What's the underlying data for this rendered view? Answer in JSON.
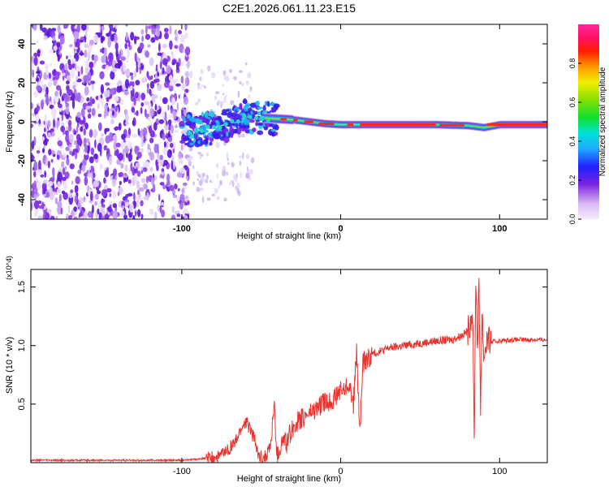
{
  "title": "C2E1.2026.061.11.23.E15",
  "colors": {
    "snr_line": "#e8342f",
    "frame": "#000000",
    "background": "#ffffff"
  },
  "chart_data": [
    {
      "type": "heatmap",
      "name": "spectrogram",
      "title": "C2E1.2026.061.11.23.E15",
      "xlabel": "Height of straight line (km)",
      "ylabel": "Frequency (Hz)",
      "xlim": [
        -195,
        130
      ],
      "ylim": [
        -50,
        50
      ],
      "xticks": [
        -100,
        0,
        100
      ],
      "xtick_labels": [
        "-100",
        "0",
        "100"
      ],
      "yticks": [
        -40,
        -20,
        0,
        20,
        40
      ],
      "ytick_labels": [
        "-40",
        "-20",
        "0",
        "20",
        "40"
      ],
      "colorbar": {
        "label": "Normalized spectral amplitude",
        "range": [
          0,
          1
        ],
        "ticks": [
          0.0,
          0.2,
          0.4,
          0.6,
          0.8
        ],
        "tick_labels": [
          "0.0",
          "0.2",
          "0.4",
          "0.6",
          "0.8"
        ],
        "colormap": "rainbow (white/lavender-violet-blue-cyan-green-yellow-orange-red-pink)"
      },
      "features": {
        "noise_region_x": [
          -195,
          -100
        ],
        "carrier_track": [
          {
            "x": -100,
            "f": -5
          },
          {
            "x": -85,
            "f": -4
          },
          {
            "x": -70,
            "f": -1
          },
          {
            "x": -60,
            "f": 3
          },
          {
            "x": -50,
            "f": 2
          },
          {
            "x": -40,
            "f": 1.5
          },
          {
            "x": -30,
            "f": 1
          },
          {
            "x": -20,
            "f": 0
          },
          {
            "x": -10,
            "f": -1
          },
          {
            "x": 0,
            "f": -1.5
          },
          {
            "x": 20,
            "f": -1.5
          },
          {
            "x": 60,
            "f": -1.5
          },
          {
            "x": 80,
            "f": -2
          },
          {
            "x": 90,
            "f": -3
          },
          {
            "x": 100,
            "f": -1.5
          },
          {
            "x": 130,
            "f": -1.5
          }
        ]
      }
    },
    {
      "type": "line",
      "name": "snr",
      "xlabel": "Height of straight line (km)",
      "ylabel": "SNR (10 * v/v)",
      "scale_label": "(x10^4)",
      "xlim": [
        -195,
        130
      ],
      "ylim": [
        0,
        1.65
      ],
      "xticks": [
        -100,
        0,
        100
      ],
      "xtick_labels": [
        "-100",
        "0",
        "100"
      ],
      "yticks": [
        0.5,
        1.0,
        1.5
      ],
      "ytick_labels": [
        "0.5",
        "1.0",
        "1.5"
      ],
      "series": [
        {
          "name": "SNR",
          "color": "#e8342f",
          "x": [
            -195,
            -170,
            -140,
            -110,
            -100,
            -90,
            -80,
            -75,
            -70,
            -66,
            -63,
            -60,
            -57,
            -54,
            -52,
            -50,
            -47,
            -44,
            -42,
            -40,
            -38,
            -36,
            -34,
            -32,
            -30,
            -27,
            -24,
            -20,
            -16,
            -12,
            -8,
            -4,
            -1,
            2,
            5,
            8,
            10,
            12,
            14,
            16,
            18,
            20,
            25,
            30,
            40,
            50,
            60,
            70,
            75,
            80,
            83,
            84,
            85,
            86,
            87,
            88,
            89,
            90,
            92,
            95,
            100,
            110,
            120,
            130
          ],
          "values": [
            0.02,
            0.02,
            0.02,
            0.02,
            0.02,
            0.03,
            0.04,
            0.07,
            0.12,
            0.18,
            0.28,
            0.35,
            0.3,
            0.18,
            0.06,
            0.04,
            0.06,
            0.15,
            0.5,
            0.05,
            0.12,
            0.2,
            0.15,
            0.25,
            0.3,
            0.35,
            0.38,
            0.42,
            0.45,
            0.5,
            0.52,
            0.55,
            0.6,
            0.62,
            0.68,
            0.5,
            0.95,
            0.25,
            0.85,
            0.88,
            0.9,
            0.93,
            0.95,
            0.98,
            1.0,
            1.02,
            1.04,
            1.05,
            1.08,
            1.12,
            1.3,
            0.18,
            1.6,
            1.0,
            1.5,
            0.5,
            1.3,
            0.9,
            1.05,
            1.03,
            1.04,
            1.05,
            1.05,
            1.05
          ]
        }
      ]
    }
  ]
}
